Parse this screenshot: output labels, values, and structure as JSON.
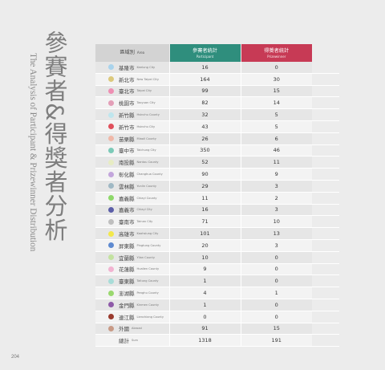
{
  "title": {
    "chinese": "參賽者&得獎者分析",
    "english": "The Analysis of Participant & Prizewinner Distribution"
  },
  "page_number": "204",
  "table": {
    "headers": {
      "region": {
        "zh": "區域別",
        "en": "Area"
      },
      "participants": {
        "zh": "參賽者統計",
        "en": "Participant"
      },
      "winners": {
        "zh": "得獎者統計",
        "en": "Prizewinner"
      }
    },
    "rows": [
      {
        "zh": "基隆市",
        "en": "Keelung City",
        "participants": "16",
        "winners": "0",
        "color": "#a9d3ec"
      },
      {
        "zh": "新北市",
        "en": "New Taipei City",
        "participants": "164",
        "winners": "30",
        "color": "#dcc97c"
      },
      {
        "zh": "臺北市",
        "en": "Taipei City",
        "participants": "99",
        "winners": "15",
        "color": "#ee8fb3"
      },
      {
        "zh": "桃園市",
        "en": "Taoyuan City",
        "participants": "82",
        "winners": "14",
        "color": "#e39fb8"
      },
      {
        "zh": "新竹縣",
        "en": "Hsinchu County",
        "participants": "32",
        "winners": "5",
        "color": "#bfe6ee"
      },
      {
        "zh": "新竹市",
        "en": "Hsinchu City",
        "participants": "43",
        "winners": "5",
        "color": "#e0505c"
      },
      {
        "zh": "苗栗縣",
        "en": "Miaoli County",
        "participants": "26",
        "winners": "6",
        "color": "#f0b8a8"
      },
      {
        "zh": "臺中市",
        "en": "Taichung City",
        "participants": "350",
        "winners": "46",
        "color": "#7ccab8"
      },
      {
        "zh": "南投縣",
        "en": "Nantou County",
        "participants": "52",
        "winners": "11",
        "color": "#e7ecc3"
      },
      {
        "zh": "彰化縣",
        "en": "Changhua County",
        "participants": "90",
        "winners": "9",
        "color": "#c3a6dc"
      },
      {
        "zh": "雲林縣",
        "en": "Yunlin County",
        "participants": "29",
        "winners": "3",
        "color": "#9fb8c4"
      },
      {
        "zh": "嘉義縣",
        "en": "Chiayi County",
        "participants": "11",
        "winners": "2",
        "color": "#8ed86a"
      },
      {
        "zh": "嘉義市",
        "en": "Chiayi City",
        "participants": "16",
        "winners": "3",
        "color": "#5b5ea8"
      },
      {
        "zh": "臺南市",
        "en": "Tainan City",
        "participants": "71",
        "winners": "10",
        "color": "#bfbfbf"
      },
      {
        "zh": "高雄市",
        "en": "Kaohsiung City",
        "participants": "101",
        "winners": "13",
        "color": "#f3e84a"
      },
      {
        "zh": "屏東縣",
        "en": "Pingtung County",
        "participants": "20",
        "winners": "3",
        "color": "#5e8ad0"
      },
      {
        "zh": "宜蘭縣",
        "en": "Yilan County",
        "participants": "10",
        "winners": "0",
        "color": "#c3e2a0"
      },
      {
        "zh": "花蓮縣",
        "en": "Hualien County",
        "participants": "9",
        "winners": "0",
        "color": "#f2b3d1"
      },
      {
        "zh": "臺東縣",
        "en": "Taitung County",
        "participants": "1",
        "winners": "0",
        "color": "#a8dcd8"
      },
      {
        "zh": "澎湖縣",
        "en": "Penghu County",
        "participants": "4",
        "winners": "1",
        "color": "#9ad86f"
      },
      {
        "zh": "金門縣",
        "en": "Kinmen County",
        "participants": "1",
        "winners": "0",
        "color": "#8e5aa8"
      },
      {
        "zh": "連江縣",
        "en": "Lienchiang County",
        "participants": "0",
        "winners": "0",
        "color": "#9a3b2e"
      },
      {
        "zh": "外國",
        "en": "Abroad",
        "participants": "91",
        "winners": "15",
        "color": "#c89a86"
      }
    ],
    "total": {
      "zh": "總計",
      "en": "Sum",
      "participants": "1318",
      "winners": "191"
    }
  }
}
